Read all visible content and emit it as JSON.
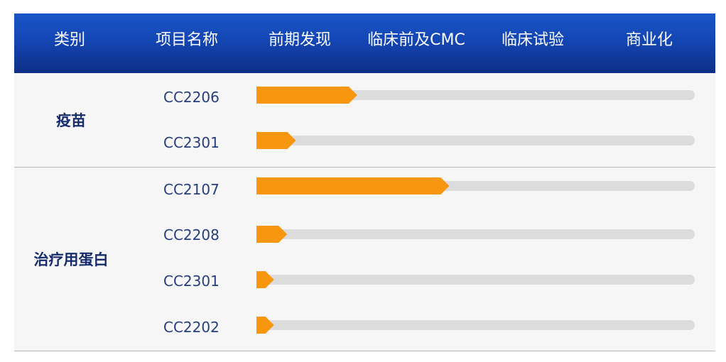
{
  "header": {
    "columns": [
      "类别",
      "项目名称",
      "前期发现",
      "临床前及CMC",
      "临床试验",
      "商业化"
    ]
  },
  "groups": [
    {
      "category": "疫苗"
    },
    {
      "category": "治疗用蛋白"
    }
  ],
  "colors": {
    "progress": "#f7970f",
    "track": "#dcdcdc",
    "header": "#1446b4"
  },
  "chart_data": {
    "type": "bar",
    "orientation": "horizontal",
    "stages": [
      "前期发现",
      "临床前及CMC",
      "临床试验",
      "商业化"
    ],
    "categories": [
      "CC2206",
      "CC2301",
      "CC2107",
      "CC2208",
      "CC2301",
      "CC2202"
    ],
    "groups": [
      "疫苗",
      "疫苗",
      "治疗用蛋白",
      "治疗用蛋白",
      "治疗用蛋白",
      "治疗用蛋白"
    ],
    "values": [
      0.23,
      0.09,
      0.44,
      0.07,
      0.04,
      0.04
    ],
    "value_unit": "fraction of full pipeline (0–1)",
    "xlim": [
      0,
      1
    ],
    "grid": false
  }
}
